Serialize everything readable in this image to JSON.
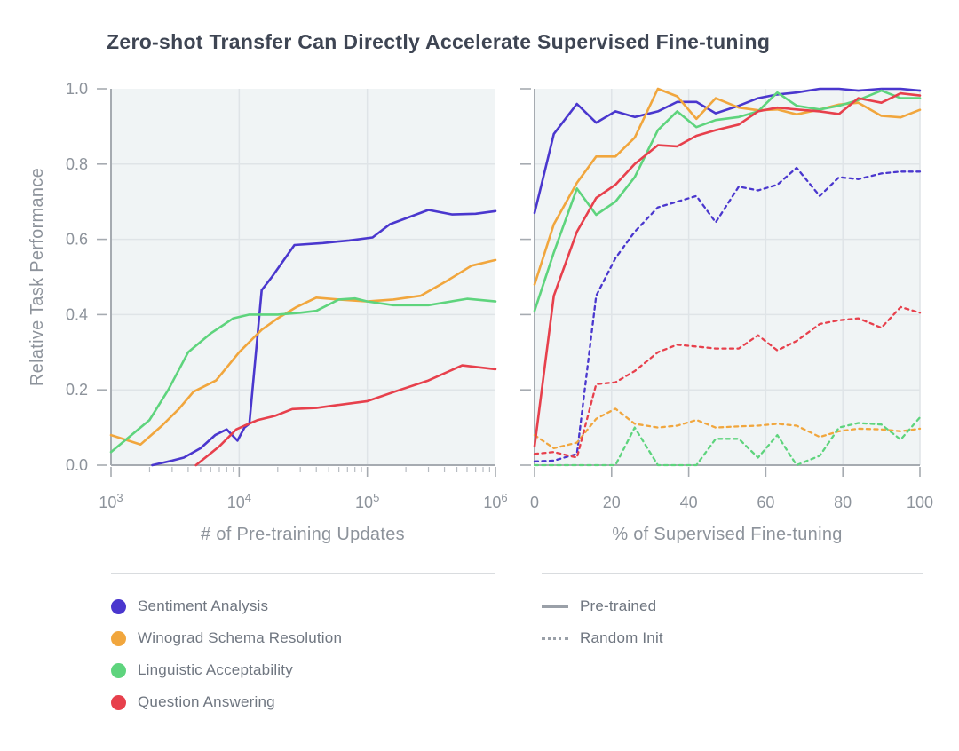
{
  "figure": {
    "title": "Zero-shot Transfer Can Directly Accelerate Supervised Fine-tuning"
  },
  "chart_data": [
    {
      "id": "pretraining-updates",
      "type": "line",
      "xlabel": "# of Pre-training Updates",
      "ylabel": "Relative Task Performance",
      "xscale": "log",
      "xlim": [
        1000,
        1000000
      ],
      "ylim": [
        0,
        1
      ],
      "grid": true,
      "show_y_labels": true,
      "x_ticks": [
        {
          "value": 1000,
          "base": "10",
          "exp": "3"
        },
        {
          "value": 10000,
          "base": "10",
          "exp": "4"
        },
        {
          "value": 100000,
          "base": "10",
          "exp": "5"
        },
        {
          "value": 1000000,
          "base": "10",
          "exp": "6"
        }
      ],
      "y_ticks": [
        {
          "value": 0.0,
          "label": "0.0"
        },
        {
          "value": 0.2,
          "label": "0.2"
        },
        {
          "value": 0.4,
          "label": "0.4"
        },
        {
          "value": 0.6,
          "label": "0.6"
        },
        {
          "value": 0.8,
          "label": "0.8"
        },
        {
          "value": 1.0,
          "label": "1.0"
        }
      ],
      "series": [
        {
          "name": "Sentiment Analysis",
          "style": "solid",
          "color": "#4a37ce",
          "points": [
            [
              2100,
              0.0
            ],
            [
              3000,
              0.012
            ],
            [
              3700,
              0.02
            ],
            [
              5000,
              0.045
            ],
            [
              6500,
              0.08
            ],
            [
              8000,
              0.095
            ],
            [
              9700,
              0.065
            ],
            [
              11000,
              0.1
            ],
            [
              12000,
              0.11
            ],
            [
              15000,
              0.465
            ],
            [
              18000,
              0.5
            ],
            [
              27000,
              0.585
            ],
            [
              45000,
              0.59
            ],
            [
              72000,
              0.597
            ],
            [
              110000,
              0.605
            ],
            [
              150000,
              0.64
            ],
            [
              300000,
              0.678
            ],
            [
              460000,
              0.666
            ],
            [
              700000,
              0.668
            ],
            [
              1000000,
              0.675
            ]
          ]
        },
        {
          "name": "Winograd Schema Resolution",
          "style": "solid",
          "color": "#f1a63d",
          "points": [
            [
              1000,
              0.08
            ],
            [
              1700,
              0.055
            ],
            [
              2500,
              0.105
            ],
            [
              3400,
              0.15
            ],
            [
              4400,
              0.195
            ],
            [
              6600,
              0.225
            ],
            [
              10000,
              0.3
            ],
            [
              15000,
              0.36
            ],
            [
              20000,
              0.39
            ],
            [
              28000,
              0.42
            ],
            [
              40000,
              0.445
            ],
            [
              60000,
              0.44
            ],
            [
              100000,
              0.435
            ],
            [
              160000,
              0.44
            ],
            [
              260000,
              0.45
            ],
            [
              420000,
              0.49
            ],
            [
              650000,
              0.53
            ],
            [
              1000000,
              0.545
            ]
          ]
        },
        {
          "name": "Linguistic Acceptability",
          "style": "solid",
          "color": "#5ed47d",
          "points": [
            [
              1000,
              0.035
            ],
            [
              2000,
              0.12
            ],
            [
              2800,
              0.2
            ],
            [
              4000,
              0.3
            ],
            [
              6000,
              0.35
            ],
            [
              9000,
              0.39
            ],
            [
              12000,
              0.4
            ],
            [
              20000,
              0.4
            ],
            [
              30000,
              0.405
            ],
            [
              40000,
              0.41
            ],
            [
              60000,
              0.44
            ],
            [
              80000,
              0.443
            ],
            [
              100000,
              0.435
            ],
            [
              160000,
              0.425
            ],
            [
              300000,
              0.425
            ],
            [
              600000,
              0.442
            ],
            [
              1000000,
              0.435
            ]
          ]
        },
        {
          "name": "Question Answering",
          "style": "solid",
          "color": "#e7404c",
          "points": [
            [
              4600,
              0.0
            ],
            [
              7000,
              0.05
            ],
            [
              9500,
              0.095
            ],
            [
              11000,
              0.105
            ],
            [
              14000,
              0.12
            ],
            [
              19000,
              0.131
            ],
            [
              26000,
              0.149
            ],
            [
              40000,
              0.152
            ],
            [
              59000,
              0.16
            ],
            [
              100000,
              0.17
            ],
            [
              180000,
              0.2
            ],
            [
              300000,
              0.225
            ],
            [
              550000,
              0.265
            ],
            [
              1000000,
              0.255
            ]
          ]
        }
      ]
    },
    {
      "id": "supervised-finetuning",
      "type": "line",
      "xlabel": "% of Supervised Fine-tuning",
      "ylabel": "",
      "xscale": "linear",
      "xlim": [
        0,
        100
      ],
      "ylim": [
        0,
        1
      ],
      "grid": true,
      "show_y_labels": false,
      "x_ticks": [
        {
          "value": 0,
          "label": "0"
        },
        {
          "value": 20,
          "label": "20"
        },
        {
          "value": 40,
          "label": "40"
        },
        {
          "value": 60,
          "label": "60"
        },
        {
          "value": 80,
          "label": "80"
        },
        {
          "value": 100,
          "label": "100"
        }
      ],
      "y_ticks": [
        {
          "value": 0.0
        },
        {
          "value": 0.2
        },
        {
          "value": 0.4
        },
        {
          "value": 0.6
        },
        {
          "value": 0.8
        },
        {
          "value": 1.0
        }
      ],
      "x": [
        0,
        5,
        11,
        16,
        21,
        26,
        32,
        37,
        42,
        47,
        53,
        58,
        63,
        68,
        74,
        79,
        84,
        90,
        95,
        100
      ],
      "series": [
        {
          "name": "Sentiment Analysis",
          "variant": "Pre-trained",
          "style": "solid",
          "color": "#4a37ce",
          "values": [
            0.67,
            0.88,
            0.96,
            0.91,
            0.94,
            0.925,
            0.94,
            0.965,
            0.965,
            0.935,
            0.955,
            0.975,
            0.985,
            0.99,
            1.0,
            1.0,
            0.995,
            1.0,
            1.0,
            0.995
          ]
        },
        {
          "name": "Sentiment Analysis",
          "variant": "Random Init",
          "style": "dashed",
          "color": "#4a37ce",
          "values": [
            0.01,
            0.012,
            0.03,
            0.45,
            0.55,
            0.62,
            0.685,
            0.7,
            0.715,
            0.645,
            0.74,
            0.73,
            0.745,
            0.79,
            0.715,
            0.765,
            0.76,
            0.775,
            0.78,
            0.78
          ]
        },
        {
          "name": "Winograd Schema Resolution",
          "variant": "Pre-trained",
          "style": "solid",
          "color": "#f1a63d",
          "values": [
            0.48,
            0.64,
            0.75,
            0.82,
            0.82,
            0.87,
            1.0,
            0.98,
            0.92,
            0.975,
            0.95,
            0.943,
            0.945,
            0.932,
            0.945,
            0.958,
            0.963,
            0.928,
            0.924,
            0.944
          ]
        },
        {
          "name": "Winograd Schema Resolution",
          "variant": "Random Init",
          "style": "dashed",
          "color": "#f1a63d",
          "values": [
            0.08,
            0.045,
            0.06,
            0.123,
            0.15,
            0.11,
            0.1,
            0.105,
            0.12,
            0.1,
            0.103,
            0.105,
            0.11,
            0.105,
            0.075,
            0.09,
            0.097,
            0.095,
            0.09,
            0.097
          ]
        },
        {
          "name": "Linguistic Acceptability",
          "variant": "Pre-trained",
          "style": "solid",
          "color": "#5ed47d",
          "values": [
            0.41,
            0.565,
            0.735,
            0.665,
            0.7,
            0.765,
            0.89,
            0.94,
            0.898,
            0.917,
            0.925,
            0.94,
            0.99,
            0.955,
            0.945,
            0.955,
            0.97,
            0.995,
            0.975,
            0.975
          ]
        },
        {
          "name": "Linguistic Acceptability",
          "variant": "Random Init",
          "style": "dashed",
          "color": "#5ed47d",
          "values": [
            0.0,
            0.0,
            0.0,
            0.0,
            0.0,
            0.1,
            0.0,
            0.0,
            0.0,
            0.07,
            0.07,
            0.02,
            0.08,
            0.0,
            0.025,
            0.1,
            0.112,
            0.108,
            0.068,
            0.127
          ]
        },
        {
          "name": "Question Answering",
          "variant": "Pre-trained",
          "style": "solid",
          "color": "#e7404c",
          "values": [
            0.05,
            0.45,
            0.62,
            0.71,
            0.745,
            0.8,
            0.85,
            0.847,
            0.875,
            0.89,
            0.905,
            0.94,
            0.95,
            0.945,
            0.94,
            0.933,
            0.975,
            0.963,
            0.988,
            0.982
          ]
        },
        {
          "name": "Question Answering",
          "variant": "Random Init",
          "style": "dashed",
          "color": "#e7404c",
          "values": [
            0.03,
            0.035,
            0.02,
            0.215,
            0.22,
            0.25,
            0.3,
            0.32,
            0.315,
            0.31,
            0.31,
            0.345,
            0.305,
            0.33,
            0.375,
            0.385,
            0.39,
            0.365,
            0.42,
            0.405
          ]
        }
      ]
    }
  ],
  "legend": {
    "tasks": [
      {
        "label": "Sentiment Analysis",
        "color": "#4a37ce"
      },
      {
        "label": "Winograd Schema Resolution",
        "color": "#f1a63d"
      },
      {
        "label": "Linguistic Acceptability",
        "color": "#5ed47d"
      },
      {
        "label": "Question Answering",
        "color": "#e7404c"
      }
    ],
    "styles": [
      {
        "label": "Pre-trained",
        "line": "solid"
      },
      {
        "label": "Random Init",
        "line": "dashed"
      }
    ],
    "swatch_line_color": "#9aa0a8"
  },
  "theme": {
    "plot_background": "#f0f4f5",
    "gridline_color": "#dfe4e7",
    "spine_color": "#a6abb1",
    "minor_tick_color": "#b7bcc2",
    "tick_text_color": "#8d939b",
    "title_color": "#3e4553",
    "legend_text_color": "#6f7680"
  }
}
